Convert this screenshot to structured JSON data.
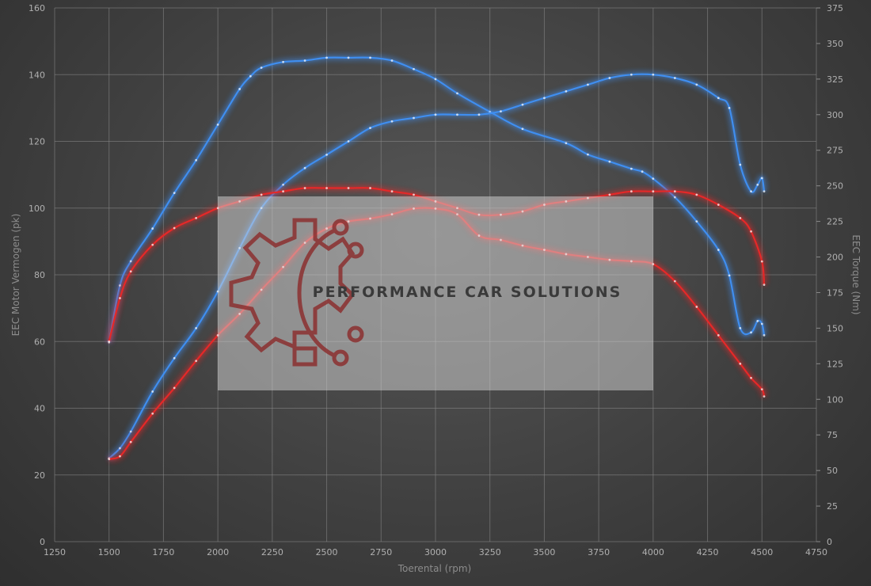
{
  "chart_data": {
    "type": "line",
    "xlabel": "Toerental (rpm)",
    "ylabel_left": "EEC Motor Vermogen (pk)",
    "ylabel_right": "EEC Torque (Nm)",
    "xlim": [
      1250,
      4750
    ],
    "ylim_left": [
      0,
      160
    ],
    "ylim_right": [
      0,
      375
    ],
    "xticks": [
      1250,
      1500,
      1750,
      2000,
      2250,
      2500,
      2750,
      3000,
      3250,
      3500,
      3750,
      4000,
      4250,
      4500,
      4750
    ],
    "yticks_left": [
      0,
      20,
      40,
      60,
      80,
      100,
      120,
      140,
      160
    ],
    "yticks_right": [
      0,
      25,
      50,
      75,
      100,
      125,
      150,
      175,
      200,
      225,
      250,
      275,
      300,
      325,
      350,
      375
    ],
    "grid": true,
    "series": [
      {
        "color": "#3f8ef0",
        "axis": "right",
        "x": [
          1500,
          1550,
          1600,
          1700,
          1800,
          1900,
          2000,
          2100,
          2150,
          2200,
          2300,
          2400,
          2500,
          2600,
          2700,
          2800,
          2900,
          3000,
          3100,
          3250,
          3400,
          3600,
          3700,
          3800,
          3900,
          3950,
          4000,
          4100,
          4200,
          4300,
          4350,
          4400,
          4450,
          4480,
          4500,
          4510
        ],
        "y": [
          140,
          180,
          197,
          220,
          245,
          268,
          293,
          318,
          327,
          333,
          337,
          338,
          340,
          340,
          340,
          338,
          332,
          325,
          315,
          302,
          290,
          280,
          272,
          267,
          262,
          260,
          255,
          242,
          225,
          205,
          187,
          150,
          147,
          155,
          153,
          145
        ]
      },
      {
        "color": "#3f8ef0",
        "axis": "left",
        "x": [
          1500,
          1550,
          1600,
          1700,
          1800,
          1900,
          2000,
          2100,
          2200,
          2300,
          2400,
          2500,
          2600,
          2700,
          2800,
          2900,
          3000,
          3100,
          3200,
          3300,
          3400,
          3500,
          3600,
          3700,
          3800,
          3900,
          4000,
          4100,
          4200,
          4300,
          4350,
          4400,
          4450,
          4480,
          4500,
          4510
        ],
        "y": [
          25,
          28,
          33,
          45,
          55,
          64,
          75,
          88,
          100,
          107,
          112,
          116,
          120,
          124,
          126,
          127,
          128,
          128,
          128,
          129,
          131,
          133,
          135,
          137,
          139,
          140,
          140,
          139,
          137,
          133,
          130,
          113,
          105,
          107,
          109,
          105
        ]
      },
      {
        "color": "#e62828",
        "axis": "right",
        "x": [
          1500,
          1550,
          1600,
          1700,
          1800,
          1900,
          2000,
          2100,
          2200,
          2300,
          2400,
          2500,
          2600,
          2700,
          2800,
          2900,
          3000,
          3100,
          3200,
          3300,
          3400,
          3500,
          3600,
          3700,
          3800,
          3900,
          4000,
          4100,
          4200,
          4300,
          4400,
          4450,
          4500,
          4510
        ],
        "y": [
          58,
          60,
          70,
          90,
          108,
          127,
          145,
          160,
          177,
          193,
          210,
          220,
          225,
          227,
          230,
          234,
          234,
          230,
          215,
          212,
          208,
          205,
          202,
          200,
          198,
          197,
          195,
          183,
          165,
          145,
          125,
          115,
          107,
          102
        ]
      },
      {
        "color": "#e62828",
        "axis": "left",
        "x": [
          1500,
          1550,
          1600,
          1700,
          1800,
          1900,
          2000,
          2100,
          2200,
          2300,
          2400,
          2500,
          2600,
          2700,
          2800,
          2900,
          3000,
          3100,
          3200,
          3300,
          3400,
          3500,
          3600,
          3700,
          3800,
          3900,
          4000,
          4100,
          4200,
          4300,
          4400,
          4450,
          4500,
          4510
        ],
        "y": [
          60,
          73,
          81,
          89,
          94,
          97,
          100,
          102,
          104,
          105,
          106,
          106,
          106,
          106,
          105,
          104,
          102,
          100,
          98,
          98,
          99,
          101,
          102,
          103,
          104,
          105,
          105,
          105,
          104,
          101,
          97,
          93,
          84,
          77
        ]
      }
    ]
  },
  "watermark": {
    "text": "PERFORMANCE CAR SOLUTIONS",
    "logo_icon": "gear-circuit-logo-icon",
    "accent_color": "#8b2a2a"
  }
}
